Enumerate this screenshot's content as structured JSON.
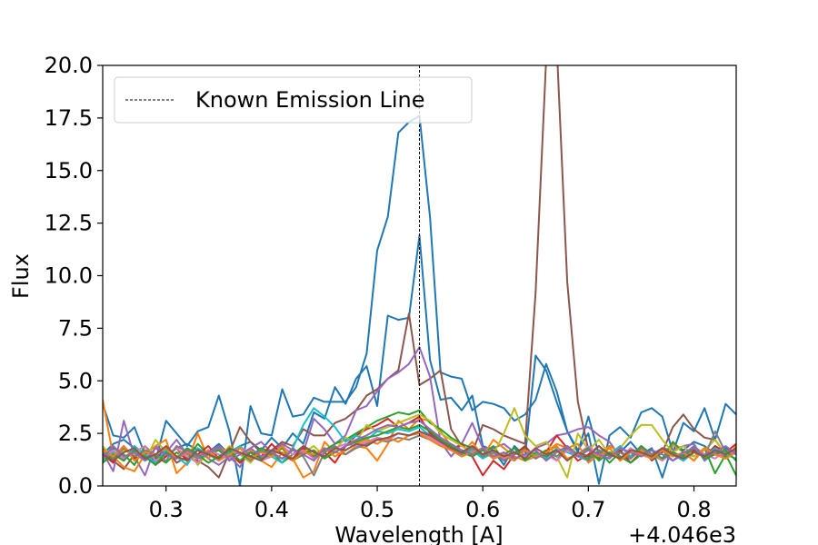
{
  "chart_data": {
    "type": "line",
    "title": "",
    "xlabel": "Wavelength [A]",
    "ylabel": "Flux",
    "x_offset_label": "+4.046e3",
    "xlim": [
      0.24,
      0.84
    ],
    "ylim": [
      0,
      20
    ],
    "x_ticks": [
      0.3,
      0.4,
      0.5,
      0.6,
      0.7,
      0.8
    ],
    "x_tick_labels": [
      "0.3",
      "0.4",
      "0.5",
      "0.6",
      "0.7",
      "0.8"
    ],
    "y_ticks": [
      0,
      2.5,
      5,
      7.5,
      10,
      12.5,
      15,
      17.5,
      20
    ],
    "y_tick_labels": [
      "0.0",
      "2.5",
      "5.0",
      "7.5",
      "10.0",
      "12.5",
      "15.0",
      "17.5",
      "20.0"
    ],
    "grid": false,
    "legend_position": "top-left",
    "emission_line": {
      "x": 0.54,
      "label": "Known Emission Line",
      "color": "#000000"
    },
    "x": [
      0.24,
      0.25,
      0.26,
      0.27,
      0.28,
      0.29,
      0.3,
      0.31,
      0.32,
      0.33,
      0.34,
      0.35,
      0.36,
      0.37,
      0.38,
      0.39,
      0.4,
      0.41,
      0.42,
      0.43,
      0.44,
      0.45,
      0.46,
      0.47,
      0.48,
      0.49,
      0.5,
      0.51,
      0.52,
      0.53,
      0.54,
      0.55,
      0.56,
      0.57,
      0.58,
      0.59,
      0.6,
      0.61,
      0.62,
      0.63,
      0.64,
      0.65,
      0.66,
      0.67,
      0.68,
      0.69,
      0.7,
      0.71,
      0.72,
      0.73,
      0.74,
      0.75,
      0.76,
      0.77,
      0.78,
      0.79,
      0.8,
      0.81,
      0.82,
      0.83,
      0.84
    ],
    "series": [
      {
        "color": "#1f77b4",
        "values": [
          3.9,
          2.4,
          2.3,
          2.8,
          1.5,
          1.2,
          3.1,
          2.5,
          1.9,
          2.6,
          2.8,
          4.3,
          2.6,
          0.0,
          3.8,
          2.5,
          2.4,
          4.6,
          3.3,
          3.4,
          4.2,
          4.0,
          4.0,
          4.0,
          4.7,
          6.3,
          11.2,
          12.8,
          16.8,
          17.3,
          17.6,
          12.8,
          5.4,
          5.2,
          5.1,
          3.6,
          4.0,
          3.9,
          3.7,
          3.1,
          3.4,
          4.1,
          5.8,
          4.5,
          2.6,
          1.7,
          2.5,
          0.1,
          2.4,
          2.8,
          2.3,
          3.5,
          3.7,
          3.3,
          1.6,
          3.0,
          2.6,
          3.7,
          2.2,
          3.9,
          3.4
        ]
      },
      {
        "color": "#1f77b4",
        "values": [
          1.5,
          2.0,
          2.2,
          1.8,
          1.2,
          1.5,
          1.4,
          1.8,
          2.0,
          1.7,
          1.6,
          2.0,
          1.5,
          1.9,
          2.1,
          1.7,
          2.3,
          1.8,
          2.5,
          2.0,
          3.5,
          3.2,
          4.7,
          3.9,
          5.1,
          5.7,
          3.8,
          8.1,
          7.9,
          8.0,
          11.9,
          6.0,
          4.1,
          4.2,
          3.6,
          4.3,
          1.9,
          1.7,
          1.0,
          1.9,
          1.4,
          6.2,
          5.5,
          4.0,
          2.6,
          1.6,
          3.3,
          1.5,
          1.9,
          1.6,
          2.1,
          1.5,
          1.8,
          0.4,
          2.0,
          1.7,
          2.1,
          1.9,
          1.5,
          1.8,
          1.6
        ]
      },
      {
        "color": "#8c564b",
        "values": [
          1.8,
          1.2,
          0.8,
          1.5,
          1.6,
          1.3,
          1.8,
          1.1,
          1.4,
          1.2,
          0.9,
          0.4,
          1.6,
          2.8,
          2.1,
          1.6,
          1.7,
          2.1,
          1.9,
          2.7,
          2.4,
          2.4,
          3.0,
          3.2,
          3.6,
          4.3,
          4.6,
          5.1,
          5.5,
          8.2,
          4.8,
          5.1,
          5.5,
          2.7,
          1.9,
          1.6,
          2.9,
          2.7,
          2.4,
          2.2,
          2.0,
          9.2,
          20.3,
          21.0,
          9.7,
          4.0,
          1.7,
          1.3,
          1.9,
          1.6,
          1.4,
          1.9,
          1.2,
          1.6,
          2.8,
          3.4,
          2.7,
          2.3,
          2.2,
          1.5,
          1.8
        ]
      },
      {
        "color": "#9467bd",
        "values": [
          1.6,
          0.7,
          3.1,
          1.4,
          0.5,
          1.9,
          1.6,
          2.2,
          1.5,
          1.7,
          1.3,
          1.0,
          1.4,
          0.9,
          1.8,
          2.1,
          1.6,
          2.0,
          1.7,
          1.6,
          3.2,
          2.7,
          2.0,
          2.4,
          3.6,
          3.8,
          4.5,
          5.1,
          5.4,
          5.8,
          6.6,
          5.2,
          2.1,
          1.4,
          2.0,
          3.0,
          1.8,
          1.8,
          2.0,
          1.6,
          1.4,
          1.8,
          2.0,
          2.4,
          2.5,
          2.7,
          2.8,
          2.4,
          2.1,
          1.4,
          1.3,
          1.9,
          1.5,
          1.8,
          1.7,
          1.9,
          2.0,
          1.2,
          1.6,
          1.4,
          1.7
        ]
      },
      {
        "color": "#ff7f0e",
        "values": [
          4.1,
          1.4,
          0.9,
          0.7,
          1.5,
          1.9,
          2.2,
          0.6,
          1.1,
          2.5,
          1.3,
          1.9,
          1.5,
          1.1,
          1.7,
          1.2,
          0.9,
          1.6,
          1.3,
          0.4,
          0.7,
          2.1,
          1.6,
          1.5,
          1.9,
          1.8,
          1.2,
          2.0,
          3.1,
          2.7,
          3.2,
          3.1,
          2.6,
          1.9,
          1.5,
          2.1,
          1.4,
          2.2,
          1.8,
          1.4,
          1.2,
          1.4,
          1.6,
          2.0,
          1.8,
          2.0,
          1.1,
          1.5,
          1.9,
          1.6,
          1.3,
          1.7,
          1.5,
          1.2,
          2.0,
          1.6,
          1.4,
          1.8,
          1.5,
          1.3,
          1.9
        ]
      },
      {
        "color": "#2ca02c",
        "values": [
          1.2,
          1.8,
          1.5,
          1.0,
          1.9,
          1.4,
          1.1,
          1.6,
          1.3,
          2.0,
          1.5,
          1.7,
          1.2,
          1.9,
          1.4,
          1.8,
          1.6,
          1.1,
          1.5,
          1.9,
          1.4,
          1.7,
          2.0,
          2.2,
          2.5,
          2.8,
          3.1,
          3.3,
          3.5,
          3.4,
          3.6,
          3.0,
          2.7,
          2.3,
          2.0,
          1.8,
          1.5,
          1.9,
          1.2,
          1.6,
          1.8,
          1.4,
          1.7,
          1.2,
          1.9,
          1.5,
          1.3,
          1.7,
          1.1,
          1.6,
          1.4,
          1.9,
          1.5,
          1.3,
          2.1,
          1.6,
          1.2,
          1.8,
          0.6,
          1.5,
          0.5
        ]
      },
      {
        "color": "#d62728",
        "values": [
          1.5,
          1.1,
          1.9,
          1.3,
          1.6,
          1.0,
          1.4,
          1.8,
          1.2,
          1.5,
          1.9,
          1.3,
          1.7,
          1.1,
          1.6,
          1.4,
          2.0,
          1.5,
          1.2,
          1.8,
          1.3,
          1.6,
          1.1,
          1.9,
          2.4,
          2.7,
          2.9,
          3.2,
          2.8,
          3.0,
          3.3,
          2.5,
          2.1,
          1.7,
          2.0,
          1.4,
          0.5,
          1.2,
          0.8,
          1.5,
          1.9,
          1.3,
          1.6,
          2.4,
          1.8,
          1.2,
          1.5,
          1.9,
          1.4,
          1.7,
          1.1,
          1.6,
          1.3,
          1.8,
          1.5,
          1.2,
          1.7,
          1.4,
          1.9,
          1.6,
          2.0
        ]
      },
      {
        "color": "#bcbd22",
        "values": [
          1.9,
          1.3,
          1.7,
          1.5,
          1.2,
          2.2,
          1.6,
          1.4,
          1.8,
          1.0,
          1.6,
          1.3,
          1.9,
          1.5,
          1.1,
          1.7,
          1.4,
          1.8,
          1.2,
          1.6,
          1.9,
          1.4,
          1.7,
          2.3,
          2.1,
          2.9,
          2.6,
          2.8,
          3.0,
          3.2,
          3.4,
          3.1,
          2.5,
          2.2,
          1.9,
          1.6,
          1.8,
          1.5,
          2.5,
          3.7,
          2.4,
          1.9,
          2.1,
          1.4,
          0.4,
          2.5,
          1.7,
          2.2,
          1.5,
          1.8,
          2.4,
          2.9,
          2.9,
          2.2,
          1.6,
          1.9,
          1.4,
          1.7,
          2.2,
          1.5,
          1.8
        ]
      },
      {
        "color": "#17becf",
        "values": [
          1.3,
          1.6,
          1.2,
          1.9,
          1.5,
          1.1,
          1.7,
          1.4,
          1.0,
          1.8,
          1.5,
          1.2,
          1.6,
          1.9,
          1.3,
          1.7,
          1.4,
          1.1,
          1.8,
          2.9,
          3.7,
          3.3,
          2.8,
          2.1,
          2.4,
          2.2,
          2.6,
          2.5,
          2.7,
          2.6,
          2.8,
          2.4,
          2.1,
          1.8,
          1.5,
          1.7,
          1.3,
          1.6,
          1.4,
          1.2,
          1.7,
          1.5,
          1.3,
          1.8,
          1.6,
          1.4,
          1.2,
          1.7,
          1.5,
          1.9,
          1.4,
          1.6,
          1.3,
          1.7,
          1.5,
          1.2,
          1.6,
          1.4,
          1.8,
          1.5,
          1.3
        ]
      },
      {
        "color": "#e377c2",
        "values": [
          1.4,
          1.7,
          1.3,
          1.6,
          1.9,
          1.2,
          1.5,
          1.8,
          1.4,
          1.1,
          1.7,
          1.5,
          1.3,
          1.8,
          1.6,
          1.2,
          1.4,
          1.9,
          1.5,
          1.7,
          1.3,
          1.6,
          1.8,
          2.0,
          1.9,
          2.1,
          2.3,
          2.2,
          2.5,
          2.4,
          2.6,
          2.3,
          2.0,
          1.8,
          1.6,
          1.9,
          1.5,
          1.7,
          1.3,
          1.6,
          1.4,
          1.8,
          1.5,
          1.2,
          1.7,
          1.5,
          1.9,
          1.4,
          1.6,
          1.3,
          1.8,
          1.5,
          1.7,
          1.2,
          1.6,
          1.4,
          1.9,
          1.5,
          1.3,
          1.7,
          1.5
        ]
      },
      {
        "color": "#7f7f7f",
        "values": [
          1.6,
          1.3,
          1.8,
          1.4,
          1.7,
          1.5,
          1.2,
          1.9,
          1.6,
          1.3,
          1.5,
          1.8,
          1.4,
          1.6,
          1.2,
          1.7,
          1.5,
          1.3,
          1.8,
          1.4,
          0.5,
          1.6,
          1.9,
          1.5,
          1.8,
          2.0,
          2.2,
          2.1,
          2.3,
          2.2,
          2.4,
          2.2,
          1.9,
          1.7,
          1.5,
          1.8,
          1.4,
          1.6,
          1.2,
          1.5,
          1.7,
          1.3,
          1.6,
          1.4,
          1.8,
          1.5,
          1.2,
          1.7,
          1.4,
          1.6,
          1.3,
          1.8,
          1.5,
          1.7,
          1.2,
          1.5,
          1.9,
          1.4,
          2.6,
          1.6,
          1.7
        ]
      },
      {
        "color": "#2ca02c",
        "values": [
          1.1,
          1.5,
          1.2,
          1.7,
          1.4,
          1.0,
          1.6,
          1.3,
          1.8,
          1.5,
          1.1,
          1.4,
          1.7,
          1.2,
          1.6,
          1.3,
          1.5,
          1.8,
          1.2,
          1.5,
          1.7,
          1.3,
          1.6,
          1.9,
          2.1,
          2.3,
          2.4,
          2.6,
          2.8,
          2.7,
          2.9,
          2.6,
          2.2,
          1.9,
          1.6,
          1.4,
          1.7,
          1.3,
          1.5,
          1.8,
          1.2,
          1.6,
          1.4,
          1.7,
          1.3,
          1.5,
          1.8,
          1.2,
          1.6,
          1.4,
          1.1,
          1.5,
          1.7,
          1.3,
          1.6,
          1.4,
          1.8,
          1.3,
          1.5,
          1.7,
          1.2
        ]
      },
      {
        "color": "#ff7f0e",
        "values": [
          1.7,
          1.4,
          1.9,
          1.2,
          1.6,
          1.5,
          1.8,
          1.3,
          1.6,
          1.4,
          1.7,
          1.2,
          1.5,
          1.8,
          1.3,
          1.6,
          1.4,
          1.9,
          1.2,
          1.6,
          1.5,
          1.8,
          1.4,
          1.7,
          2.0,
          2.2,
          2.0,
          2.3,
          2.1,
          2.4,
          2.5,
          2.2,
          1.9,
          1.7,
          1.4,
          1.6,
          1.8,
          1.3,
          1.5,
          1.2,
          1.7,
          1.4,
          1.6,
          1.9,
          1.3,
          1.5,
          1.7,
          1.4,
          1.8,
          1.2,
          1.6,
          1.5,
          1.3,
          1.7,
          1.4,
          1.6,
          1.2,
          1.8,
          1.5,
          1.3,
          1.6
        ]
      },
      {
        "color": "#9467bd",
        "values": [
          1.3,
          1.9,
          1.4,
          1.6,
          1.2,
          1.8,
          1.5,
          1.3,
          1.7,
          1.4,
          1.6,
          1.9,
          1.2,
          1.5,
          1.8,
          1.4,
          1.6,
          1.3,
          1.7,
          1.5,
          1.2,
          1.8,
          1.6,
          1.9,
          2.2,
          2.4,
          2.7,
          2.9,
          2.8,
          3.0,
          3.1,
          2.7,
          2.3,
          2.0,
          1.7,
          1.5,
          1.8,
          1.4,
          1.6,
          1.3,
          1.5,
          1.7,
          1.2,
          1.6,
          1.9,
          1.4,
          1.7,
          1.5,
          1.3,
          1.8,
          1.6,
          1.4,
          1.7,
          1.5,
          1.2,
          1.6,
          1.8,
          1.4,
          1.6,
          1.9,
          1.5
        ]
      },
      {
        "color": "#8c564b",
        "values": [
          1.5,
          1.2,
          1.6,
          1.8,
          1.3,
          1.5,
          1.9,
          1.4,
          1.2,
          1.7,
          1.5,
          1.3,
          1.8,
          1.6,
          1.4,
          1.2,
          1.7,
          1.5,
          1.3,
          1.9,
          1.6,
          1.4,
          1.8,
          1.7,
          2.0,
          1.9,
          2.2,
          2.3,
          2.5,
          2.4,
          2.6,
          2.4,
          2.1,
          1.8,
          1.6,
          1.9,
          1.5,
          1.7,
          1.4,
          1.6,
          1.3,
          1.8,
          1.5,
          1.7,
          1.2,
          1.6,
          1.4,
          1.9,
          1.5,
          1.3,
          1.7,
          1.6,
          1.4,
          1.8,
          1.5,
          1.3,
          1.6,
          1.4,
          1.7,
          1.5,
          1.8
        ]
      }
    ]
  }
}
